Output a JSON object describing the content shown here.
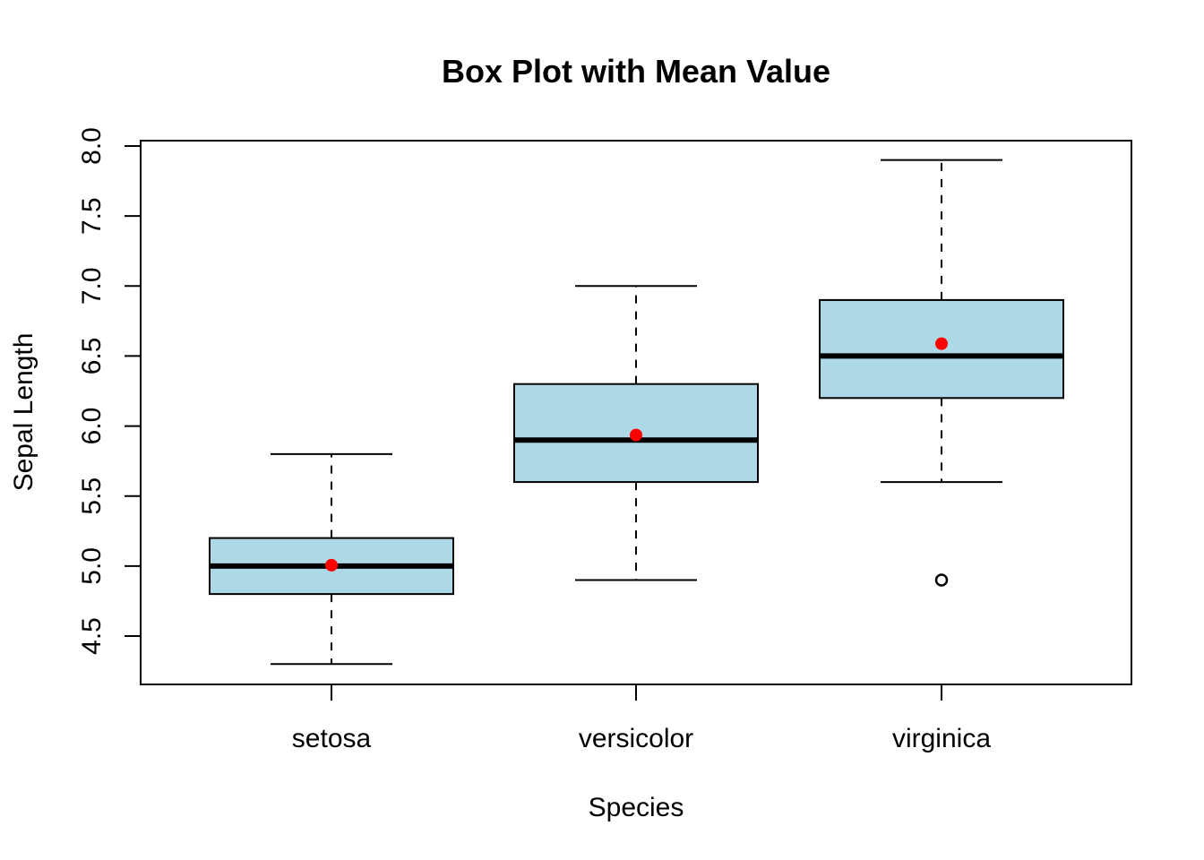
{
  "chart_data": {
    "type": "boxplot",
    "title": "Box Plot with Mean Value",
    "xlabel": "Species",
    "ylabel": "Sepal Length",
    "ylim": [
      4.2,
      8.15
    ],
    "yticks": [
      "4.5",
      "5.0",
      "5.5",
      "6.0",
      "6.5",
      "7.0",
      "7.5",
      "8.0"
    ],
    "categories": [
      "setosa",
      "versicolor",
      "virginica"
    ],
    "boxes": [
      {
        "category": "setosa",
        "whisker_low": 4.3,
        "q1": 4.8,
        "median": 5.0,
        "q3": 5.2,
        "whisker_high": 5.8,
        "mean": 5.006,
        "outliers": []
      },
      {
        "category": "versicolor",
        "whisker_low": 4.9,
        "q1": 5.6,
        "median": 5.9,
        "q3": 6.3,
        "whisker_high": 7.0,
        "mean": 5.936,
        "outliers": []
      },
      {
        "category": "virginica",
        "whisker_low": 5.6,
        "q1": 6.2,
        "median": 6.5,
        "q3": 6.9,
        "whisker_high": 7.9,
        "mean": 6.588,
        "outliers": [
          4.9
        ]
      }
    ],
    "colors": {
      "box_fill": "#add8e6",
      "mean_point": "#ff0000",
      "median_line": "#000000",
      "axis": "#000000"
    },
    "grid": false,
    "legend": "none"
  }
}
